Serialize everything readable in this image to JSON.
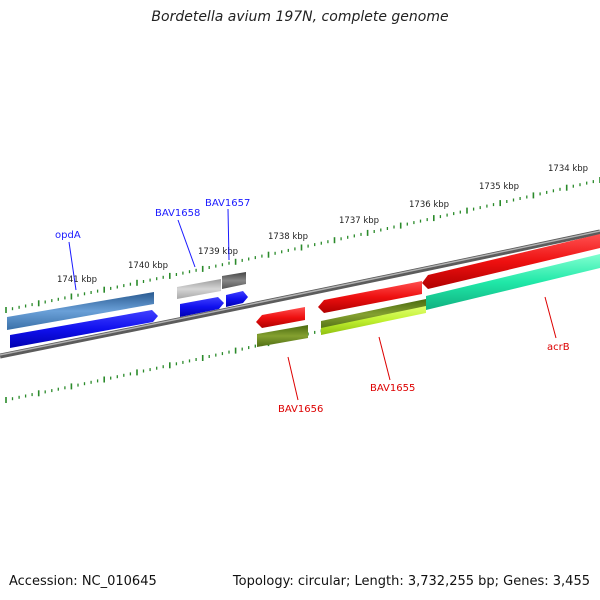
{
  "title": "Bordetella avium 197N, complete genome",
  "footer": {
    "accession": "Accession: NC_010645",
    "topology": "Topology: circular; Length: 3,732,255 bp; Genes: 3,455"
  },
  "scale_labels": [
    "1734 kbp",
    "1735 kbp",
    "1736 kbp",
    "1737 kbp",
    "1738 kbp",
    "1739 kbp",
    "1740 kbp",
    "1741 kbp"
  ],
  "genes": [
    {
      "id": "opdA",
      "label": "opdA",
      "label_color": "#1a1aff"
    },
    {
      "id": "BAV1658",
      "label": "BAV1658",
      "label_color": "#1a1aff"
    },
    {
      "id": "BAV1657",
      "label": "BAV1657",
      "label_color": "#1a1aff"
    },
    {
      "id": "BAV1656",
      "label": "BAV1656",
      "label_color": "#dd0000"
    },
    {
      "id": "BAV1655",
      "label": "BAV1655",
      "label_color": "#dd0000"
    },
    {
      "id": "acrB",
      "label": "acrB",
      "label_color": "#dd0000"
    }
  ],
  "colors": {
    "backbone": "#7a7a7a",
    "ticks": "#2a8a2a",
    "blue": "#1010e8",
    "steel": "#4a7fb8",
    "grey_light": "#b8b8b8",
    "grey_dark": "#6a6a6a",
    "red": "#ee1010",
    "olive": "#6a8a20",
    "lime": "#c6f03a",
    "aqua": "#20e8a8"
  }
}
